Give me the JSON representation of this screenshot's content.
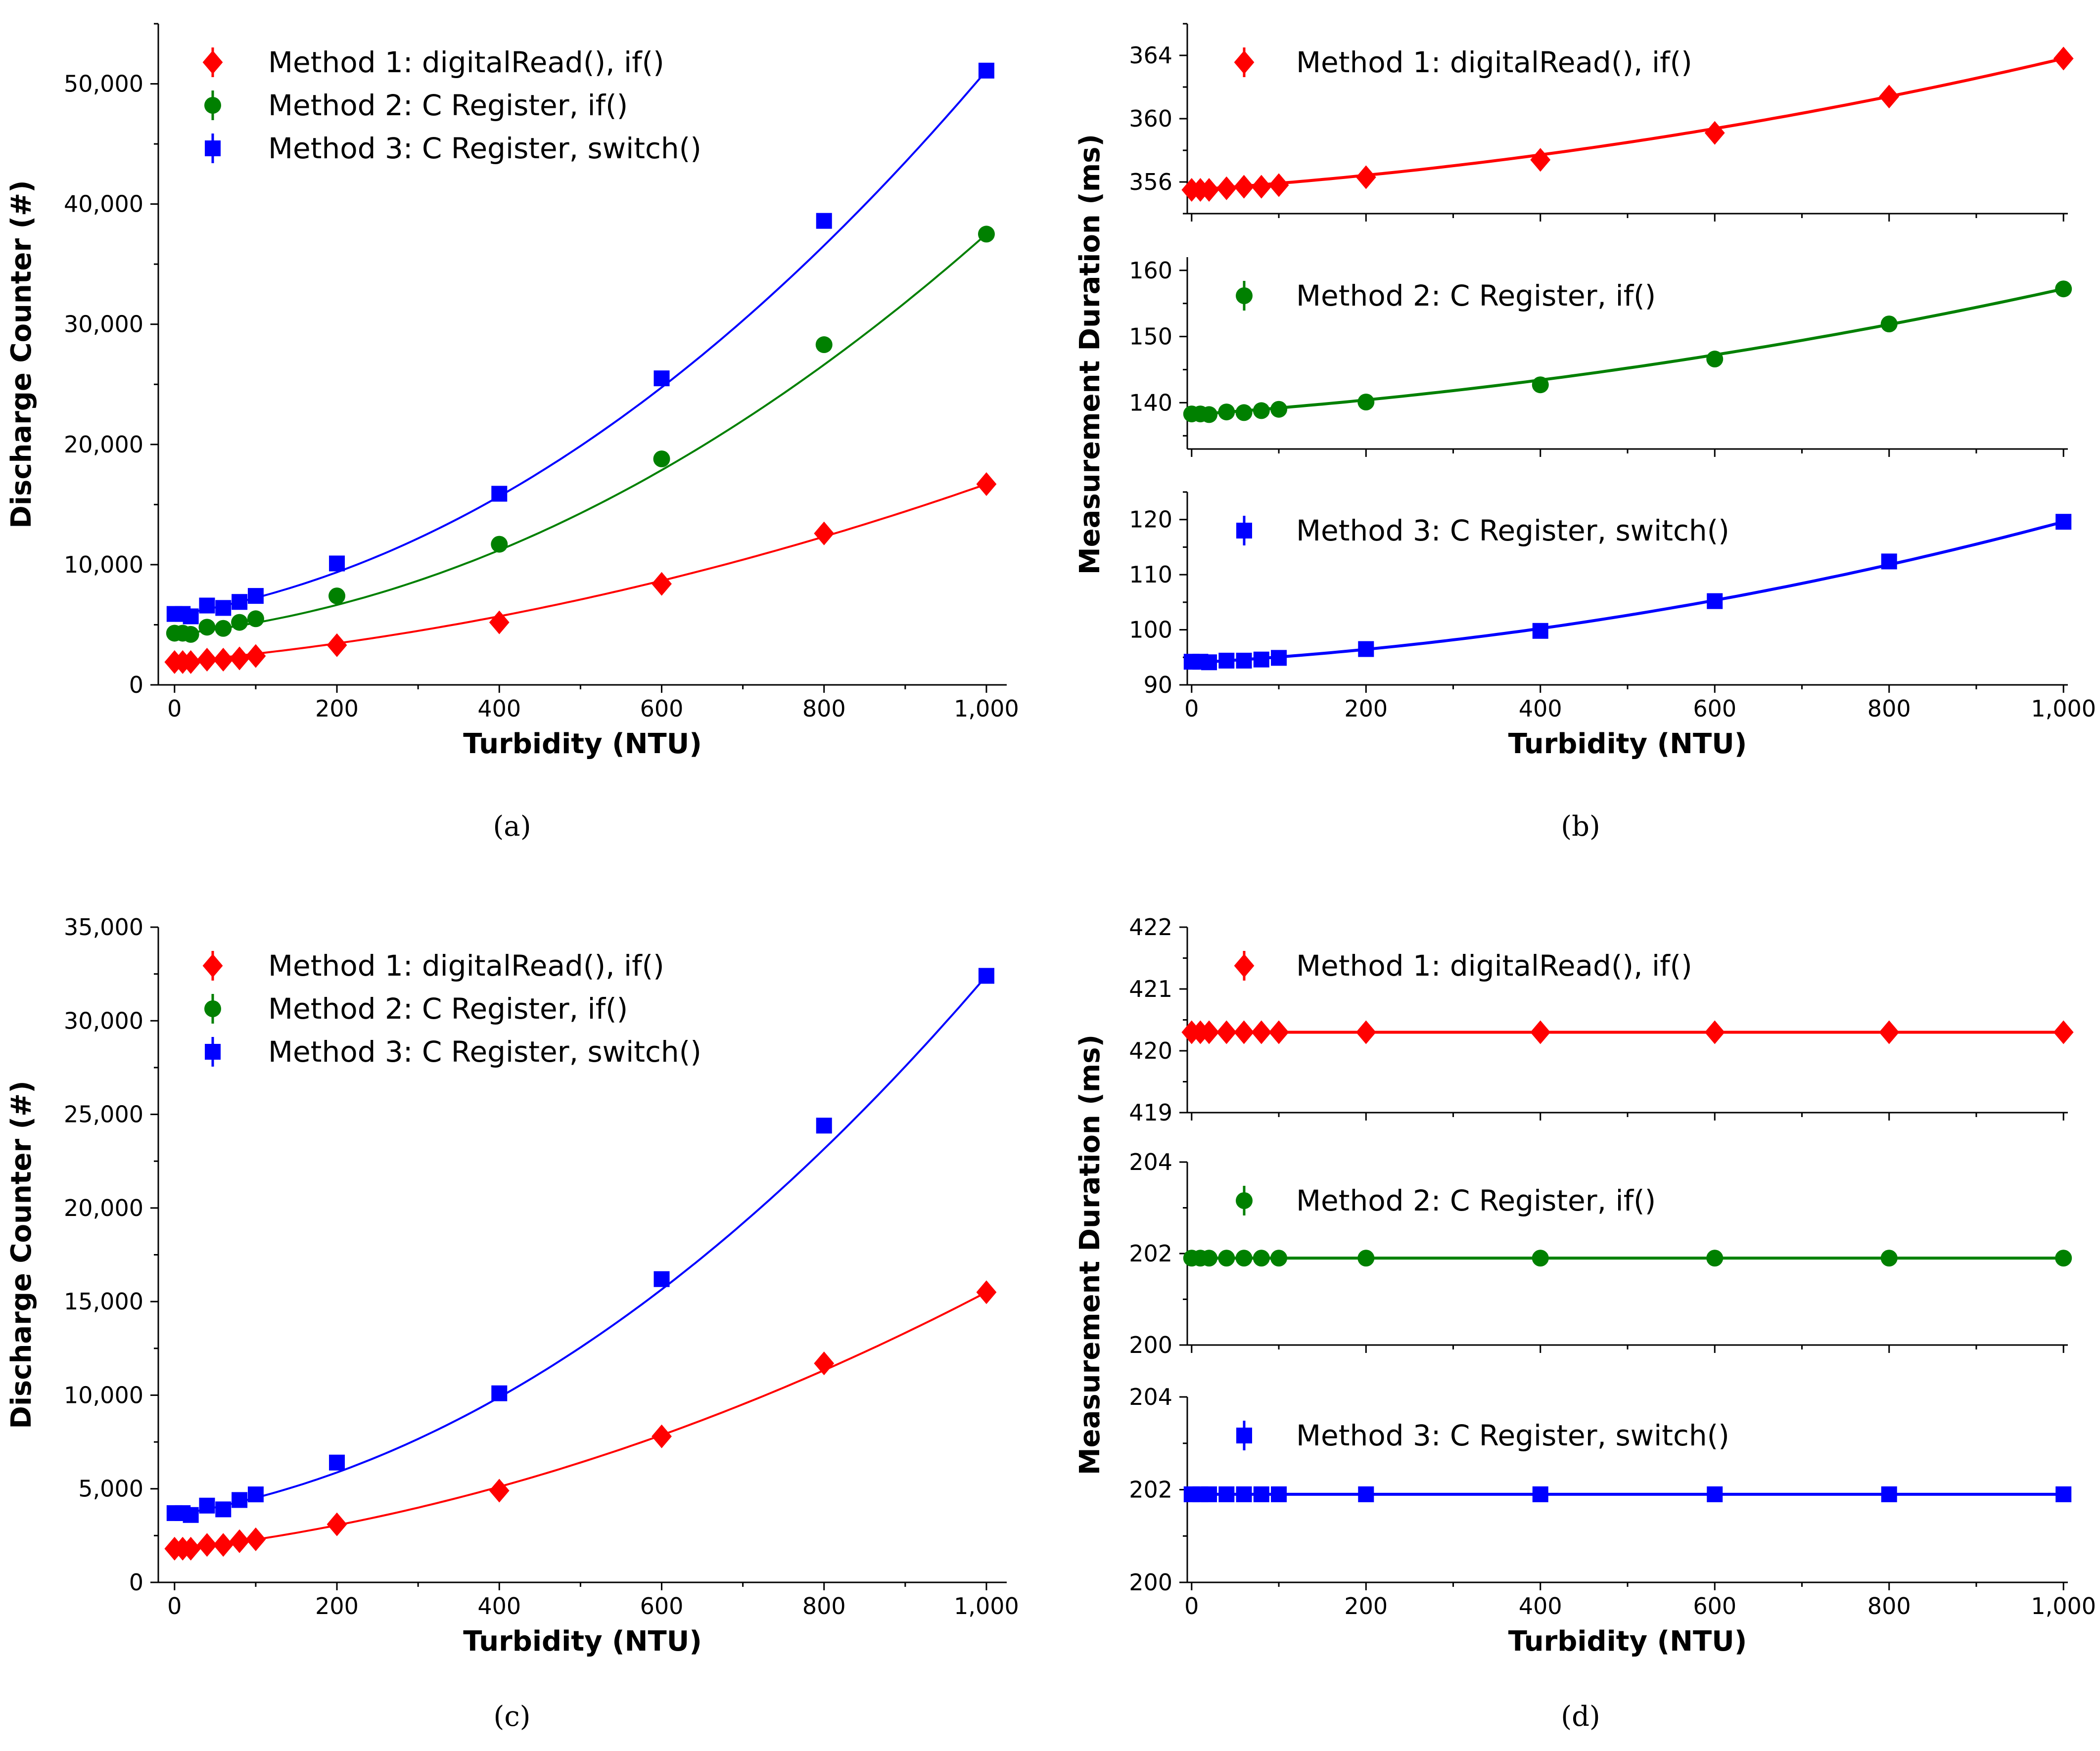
{
  "chart_data": [
    {
      "id": "a",
      "type": "scatter",
      "caption": "(a)",
      "xlabel": "Turbidity (NTU)",
      "ylabel": "Discharge Counter (#)",
      "xlim": [
        -20,
        1025
      ],
      "ylim": [
        0,
        55000
      ],
      "xticks": [
        0,
        200,
        400,
        600,
        800,
        1000
      ],
      "xtick_labels": [
        "0",
        "200",
        "400",
        "600",
        "800",
        "1,000"
      ],
      "yticks": [
        0,
        10000,
        20000,
        30000,
        40000,
        50000
      ],
      "ytick_labels": [
        "0",
        "10,000",
        "20,000",
        "30,000",
        "40,000",
        "50,000"
      ],
      "legend": "top-left",
      "series": [
        {
          "name": "Method 1: digitalRead(), if()",
          "color": "#ff0000",
          "marker": "diamond",
          "x": [
            0,
            10,
            20,
            40,
            60,
            80,
            100,
            200,
            400,
            600,
            800,
            1000
          ],
          "values": [
            1900,
            1900,
            1900,
            2100,
            2100,
            2200,
            2400,
            3300,
            5200,
            8400,
            12600,
            16700
          ],
          "fit": {
            "a": 1900,
            "b": 6.0,
            "c": 0.0088
          }
        },
        {
          "name": "Method 2: C Register, if()",
          "color": "#008000",
          "marker": "circle",
          "x": [
            0,
            10,
            20,
            40,
            60,
            80,
            100,
            200,
            400,
            600,
            800,
            1000
          ],
          "values": [
            4300,
            4300,
            4200,
            4800,
            4700,
            5200,
            5500,
            7400,
            11700,
            18800,
            28300,
            37500
          ],
          "fit": {
            "a": 4200,
            "b": 7.0,
            "c": 0.0263
          }
        },
        {
          "name": "Method 3: C Register, switch()",
          "color": "#0000ff",
          "marker": "square",
          "x": [
            0,
            10,
            20,
            40,
            60,
            80,
            100,
            200,
            400,
            600,
            800,
            1000
          ],
          "values": [
            5900,
            5900,
            5700,
            6600,
            6400,
            6900,
            7400,
            10100,
            15900,
            25500,
            38600,
            51100
          ],
          "fit": {
            "a": 5800,
            "b": 11.0,
            "c": 0.0343
          }
        }
      ]
    },
    {
      "id": "b",
      "type": "scatter",
      "caption": "(b)",
      "xlabel": "Turbidity (NTU)",
      "ylabel": "Measurement Duration (ms)",
      "xlim": [
        -5,
        1005
      ],
      "xticks": [
        0,
        200,
        400,
        600,
        800,
        1000
      ],
      "xtick_labels": [
        "0",
        "200",
        "400",
        "600",
        "800",
        "1,000"
      ],
      "panels": [
        {
          "name": "Method 1: digitalRead(), if()",
          "color": "#ff0000",
          "marker": "diamond",
          "ylim": [
            354,
            366
          ],
          "yticks": [
            356,
            360,
            364
          ],
          "ytick_labels": [
            "356",
            "360",
            "364"
          ],
          "x": [
            0,
            10,
            20,
            40,
            60,
            80,
            100,
            200,
            400,
            600,
            800,
            1000
          ],
          "values": [
            355.5,
            355.5,
            355.5,
            355.6,
            355.7,
            355.7,
            355.8,
            356.3,
            357.4,
            359.1,
            361.4,
            363.8
          ],
          "fit": {
            "a": 355.5,
            "b": 0.0037,
            "c": 4.6e-06
          }
        },
        {
          "name": "Method 2: C Register, if()",
          "color": "#008000",
          "marker": "circle",
          "ylim": [
            133,
            162
          ],
          "yticks": [
            140,
            150,
            160
          ],
          "ytick_labels": [
            "140",
            "150",
            "160"
          ],
          "x": [
            0,
            10,
            20,
            40,
            60,
            80,
            100,
            200,
            400,
            600,
            800,
            1000
          ],
          "values": [
            138.3,
            138.3,
            138.2,
            138.6,
            138.5,
            138.8,
            139.0,
            140.1,
            142.7,
            146.6,
            151.9,
            157.2
          ],
          "fit": {
            "a": 138.2,
            "b": 0.0091,
            "c": 9.9e-06
          }
        },
        {
          "name": "Method 3: C Register, switch()",
          "color": "#0000ff",
          "marker": "square",
          "ylim": [
            90,
            125
          ],
          "yticks": [
            90,
            100,
            110,
            120
          ],
          "ytick_labels": [
            "90",
            "100",
            "110",
            "120"
          ],
          "x": [
            0,
            10,
            20,
            40,
            60,
            80,
            100,
            200,
            400,
            600,
            800,
            1000
          ],
          "values": [
            94.2,
            94.2,
            94.1,
            94.4,
            94.4,
            94.6,
            94.9,
            96.5,
            99.8,
            105.2,
            112.4,
            119.6
          ],
          "fit": {
            "a": 94.0,
            "b": 0.0089,
            "c": 1.67e-05
          }
        }
      ]
    },
    {
      "id": "c",
      "type": "scatter",
      "caption": "(c)",
      "xlabel": "Turbidity (NTU)",
      "ylabel": "Discharge Counter (#)",
      "xlim": [
        -20,
        1025
      ],
      "ylim": [
        0,
        35000
      ],
      "xticks": [
        0,
        200,
        400,
        600,
        800,
        1000
      ],
      "xtick_labels": [
        "0",
        "200",
        "400",
        "600",
        "800",
        "1,000"
      ],
      "yticks": [
        0,
        5000,
        10000,
        15000,
        20000,
        25000,
        30000,
        35000
      ],
      "ytick_labels": [
        "0",
        "5,000",
        "10,000",
        "15,000",
        "20,000",
        "25,000",
        "30,000",
        "35,000"
      ],
      "legend": "top-left",
      "series": [
        {
          "name": "Method 1: digitalRead(), if()",
          "color": "#ff0000",
          "marker": "diamond",
          "x": [
            0,
            10,
            20,
            40,
            60,
            80,
            100,
            200,
            400,
            600,
            800,
            1000
          ],
          "values": [
            1800,
            1800,
            1800,
            2000,
            2000,
            2200,
            2300,
            3100,
            4900,
            7800,
            11700,
            15500
          ],
          "fit": {
            "a": 1700,
            "b": 5.0,
            "c": 0.0088
          }
        },
        {
          "name": "Method 2: C Register, if()",
          "color": "#008000",
          "marker": "circle",
          "x": [],
          "values": []
        },
        {
          "name": "Method 3: C Register, switch()",
          "color": "#0000ff",
          "marker": "square",
          "x": [
            0,
            10,
            20,
            40,
            60,
            80,
            100,
            200,
            400,
            600,
            800,
            1000
          ],
          "values": [
            3700,
            3700,
            3600,
            4100,
            3900,
            4400,
            4700,
            6400,
            10100,
            16200,
            24400,
            32400
          ],
          "fit": {
            "a": 3600,
            "b": 7.0,
            "c": 0.0218
          }
        }
      ]
    },
    {
      "id": "d",
      "type": "scatter",
      "caption": "(d)",
      "xlabel": "Turbidity (NTU)",
      "ylabel": "Measurement Duration (ms)",
      "xlim": [
        -5,
        1005
      ],
      "xticks": [
        0,
        200,
        400,
        600,
        800,
        1000
      ],
      "xtick_labels": [
        "0",
        "200",
        "400",
        "600",
        "800",
        "1,000"
      ],
      "panels": [
        {
          "name": "Method 1: digitalRead(), if()",
          "color": "#ff0000",
          "marker": "diamond",
          "ylim": [
            419,
            422
          ],
          "yticks": [
            419,
            420,
            421,
            422
          ],
          "ytick_labels": [
            "419",
            "420",
            "421",
            "422"
          ],
          "x": [
            0,
            10,
            20,
            40,
            60,
            80,
            100,
            200,
            400,
            600,
            800,
            1000
          ],
          "values": [
            420.3,
            420.3,
            420.3,
            420.3,
            420.3,
            420.3,
            420.3,
            420.3,
            420.3,
            420.3,
            420.3,
            420.3
          ],
          "fit": {
            "a": 420.3,
            "b": 0,
            "c": 0
          }
        },
        {
          "name": "Method 2: C Register, if()",
          "color": "#008000",
          "marker": "circle",
          "ylim": [
            200,
            204
          ],
          "yticks": [
            200,
            202,
            204
          ],
          "ytick_labels": [
            "200",
            "202",
            "204"
          ],
          "x": [
            0,
            10,
            20,
            40,
            60,
            80,
            100,
            200,
            400,
            600,
            800,
            1000
          ],
          "values": [
            201.9,
            201.9,
            201.9,
            201.9,
            201.9,
            201.9,
            201.9,
            201.9,
            201.9,
            201.9,
            201.9,
            201.9
          ],
          "fit": {
            "a": 201.9,
            "b": 0,
            "c": 0
          }
        },
        {
          "name": "Method 3: C Register, switch()",
          "color": "#0000ff",
          "marker": "square",
          "ylim": [
            200,
            204
          ],
          "yticks": [
            200,
            202,
            204
          ],
          "ytick_labels": [
            "200",
            "202",
            "204"
          ],
          "x": [
            0,
            10,
            20,
            40,
            60,
            80,
            100,
            200,
            400,
            600,
            800,
            1000
          ],
          "values": [
            201.9,
            201.9,
            201.9,
            201.9,
            201.9,
            201.9,
            201.9,
            201.9,
            201.9,
            201.9,
            201.9,
            201.9
          ],
          "fit": {
            "a": 201.9,
            "b": 0,
            "c": 0
          }
        }
      ]
    }
  ]
}
